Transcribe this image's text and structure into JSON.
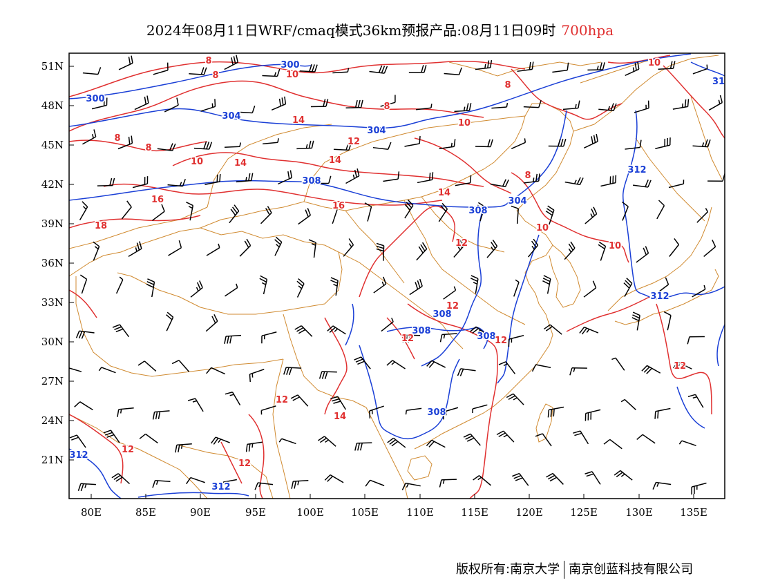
{
  "title": {
    "main": "2024年08月11日WRF/cmaq模式36km预报产品:08月11日09时",
    "level": "700hpa"
  },
  "axes": {
    "lat_labels": [
      "51N",
      "48N",
      "45N",
      "42N",
      "39N",
      "36N",
      "33N",
      "30N",
      "27N",
      "24N",
      "21N"
    ],
    "lon_labels": [
      "80E",
      "85E",
      "90E",
      "95E",
      "100E",
      "105E",
      "110E",
      "115E",
      "120E",
      "125E",
      "130E",
      "135E"
    ]
  },
  "contours": {
    "height_labels": [
      "300",
      "300",
      "304",
      "304",
      "304",
      "308",
      "308",
      "308",
      "308",
      "308",
      "308",
      "312",
      "312",
      "312",
      "312",
      "31"
    ],
    "temperature_labels": [
      "8",
      "8",
      "8",
      "8",
      "8",
      "8",
      "8",
      "10",
      "10",
      "10",
      "10",
      "10",
      "10",
      "12",
      "12",
      "12",
      "12",
      "12",
      "12",
      "12",
      "12",
      "12",
      "14",
      "14",
      "14",
      "14",
      "14",
      "16",
      "16",
      "18"
    ]
  },
  "colors": {
    "height_contour": "#1a3fd6",
    "temperature_contour": "#e03030",
    "boundary": "#d08a30",
    "wind_barb": "#000000"
  },
  "footer": {
    "copyright_left": "版权所有:南京大学",
    "copyright_right": "南京创蓝科技有限公司"
  }
}
